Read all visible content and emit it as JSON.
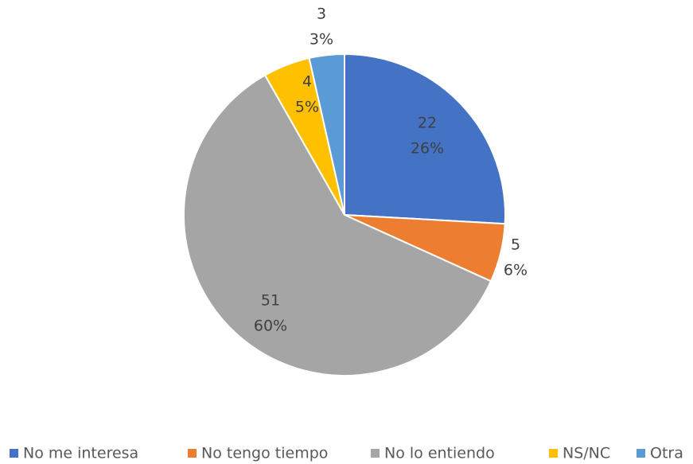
{
  "chart_data": {
    "type": "pie",
    "categories": [
      "No me interesa",
      "No tengo tiempo",
      "No lo entiendo",
      "NS/NC",
      "Otra"
    ],
    "values": [
      22,
      5,
      51,
      4,
      3
    ],
    "percentage_labels": [
      "26%",
      "6%",
      "60%",
      "5%",
      "3%"
    ],
    "colors": [
      "#4472c4",
      "#ed7d31",
      "#a5a5a5",
      "#ffc000",
      "#5b9bd5"
    ],
    "legend": "bottom"
  }
}
